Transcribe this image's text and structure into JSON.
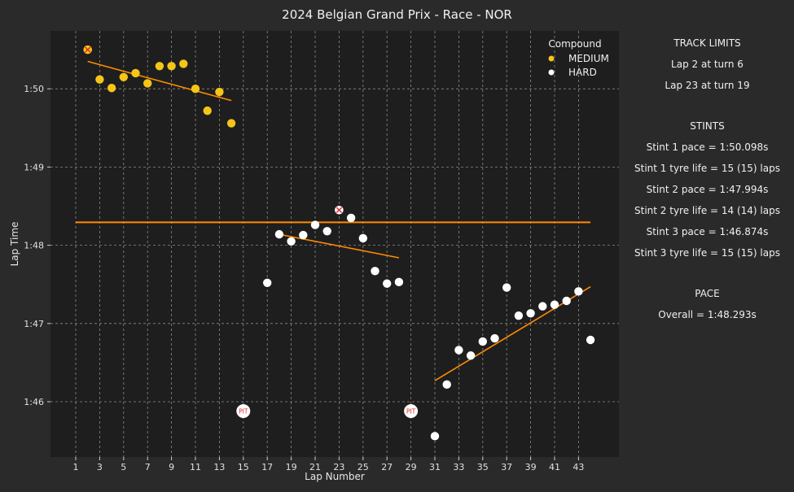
{
  "title": "2024 Belgian Grand Prix - Race - NOR",
  "chart_data": {
    "type": "scatter",
    "title": "2024 Belgian Grand Prix - Race - NOR",
    "xlabel": "Lap Number",
    "ylabel": "Lap Time",
    "xlim": [
      0,
      45
    ],
    "ylim": [
      105.4,
      110.75
    ],
    "xticks": [
      1,
      3,
      5,
      7,
      9,
      11,
      13,
      15,
      17,
      19,
      21,
      23,
      25,
      27,
      29,
      31,
      33,
      35,
      37,
      39,
      41,
      43
    ],
    "yticks": [
      {
        "value": 106,
        "label": "1:46"
      },
      {
        "value": 107,
        "label": "1:47"
      },
      {
        "value": 108,
        "label": "1:48"
      },
      {
        "value": 109,
        "label": "1:49"
      },
      {
        "value": 110,
        "label": "1:50"
      }
    ],
    "grid": true,
    "legend": {
      "title": "Compound",
      "placement": "top-right",
      "entries": [
        {
          "name": "MEDIUM",
          "color": "#f5c518"
        },
        {
          "name": "HARD",
          "color": "#ffffff"
        }
      ]
    },
    "series": [
      {
        "name": "MEDIUM",
        "color": "#f5c518",
        "x": [
          2,
          3,
          4,
          5,
          6,
          7,
          8,
          9,
          10,
          11,
          12,
          13,
          14
        ],
        "y": [
          110.5,
          110.12,
          110.01,
          110.15,
          110.2,
          110.07,
          110.29,
          110.29,
          110.32,
          110.0,
          109.72,
          109.96,
          109.56
        ]
      },
      {
        "name": "HARD",
        "color": "#ffffff",
        "x": [
          17,
          18,
          19,
          20,
          21,
          22,
          23,
          24,
          25,
          26,
          27,
          28,
          31,
          32,
          33,
          34,
          35,
          36,
          37,
          38,
          39,
          40,
          41,
          42,
          43,
          44
        ],
        "y": [
          107.52,
          108.14,
          108.05,
          108.13,
          108.26,
          108.18,
          108.45,
          108.35,
          108.09,
          107.67,
          107.51,
          107.53,
          105.56,
          106.22,
          106.66,
          106.59,
          106.77,
          106.81,
          107.46,
          107.1,
          107.13,
          107.22,
          107.24,
          107.29,
          107.41,
          106.79
        ]
      }
    ],
    "track_limit_markers": [
      {
        "lap": 2,
        "time": 110.5
      },
      {
        "lap": 23,
        "time": 108.45
      }
    ],
    "pit_markers": [
      {
        "lap": 15,
        "label": "PIT"
      },
      {
        "lap": 29,
        "label": "PIT"
      }
    ],
    "pit_marker_time": 105.88,
    "overall_pace_line": {
      "value": 108.293,
      "x_range": [
        1,
        44
      ],
      "color": "#ff8c00"
    },
    "stint_trend_lines": [
      {
        "x": [
          2,
          14
        ],
        "y": [
          110.35,
          109.85
        ],
        "color": "#ff8c00"
      },
      {
        "x": [
          18,
          28
        ],
        "y": [
          108.14,
          107.84
        ],
        "color": "#ff8c00"
      },
      {
        "x": [
          31,
          44
        ],
        "y": [
          106.27,
          107.47
        ],
        "color": "#ff8c00"
      }
    ]
  },
  "sidebar": {
    "track_limits_header": "TRACK LIMITS",
    "track_limits": [
      "Lap 2 at turn 6",
      "Lap 23 at turn 19"
    ],
    "stints_header": "STINTS",
    "stints": [
      "Stint 1 pace = 1:50.098s",
      "Stint 1 tyre life = 15 (15) laps",
      "Stint 2 pace = 1:47.994s",
      "Stint 2 tyre life = 14 (14) laps",
      "Stint 3 pace = 1:46.874s",
      "Stint 3 tyre life = 15 (15) laps"
    ],
    "pace_header": "PACE",
    "pace": "Overall = 1:48.293s"
  }
}
